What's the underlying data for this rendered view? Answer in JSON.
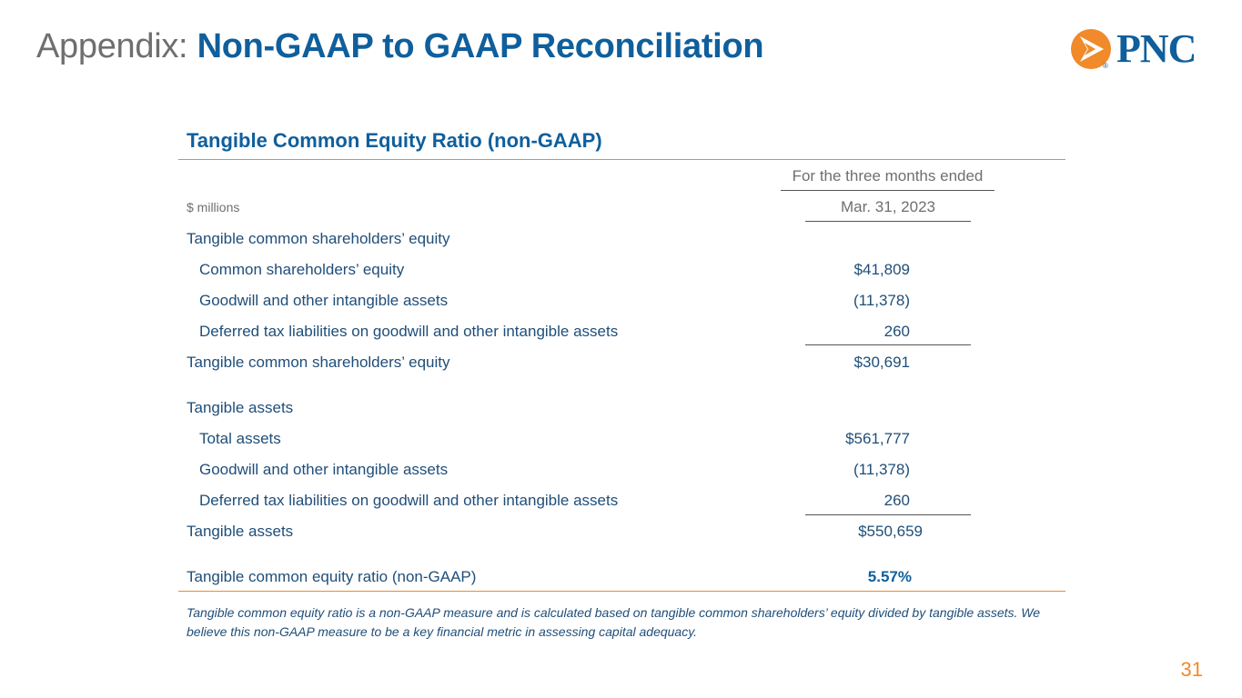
{
  "header": {
    "title_prefix": "Appendix:",
    "title_main": "Non-GAAP to GAAP Reconciliation"
  },
  "logo": {
    "text": "PNC",
    "mark_text": "®"
  },
  "colors": {
    "brand_blue": "#0f5f9c",
    "accent_orange": "#f08a2a",
    "gray_text": "#6f6f6f"
  },
  "table": {
    "title": "Tangible Common Equity Ratio (non-GAAP)",
    "period_header": "For the three months ended",
    "units_label": "$ millions",
    "column_date": "Mar. 31, 2023",
    "rows": [
      {
        "label": "Tangible common shareholders’ equity",
        "value": ""
      },
      {
        "label": "Common shareholders’ equity",
        "value": "$41,809"
      },
      {
        "label": "Goodwill and other intangible assets",
        "value": "(11,378)"
      },
      {
        "label": "Deferred tax liabilities on goodwill and other intangible assets",
        "value": "260"
      },
      {
        "label": "Tangible common shareholders’ equity",
        "value": "$30,691"
      },
      {
        "label": "Tangible assets",
        "value": ""
      },
      {
        "label": "Total assets",
        "value": "$561,777"
      },
      {
        "label": "Goodwill and other intangible assets",
        "value": "(11,378)"
      },
      {
        "label": "Deferred tax liabilities on goodwill and other intangible assets",
        "value": "260"
      },
      {
        "label": "Tangible assets",
        "value": "$550,659"
      },
      {
        "label": "Tangible common equity ratio (non-GAAP)",
        "value": "5.57%"
      }
    ]
  },
  "footnote": "Tangible common equity ratio is a non-GAAP measure and is calculated based on tangible common shareholders’ equity divided by tangible assets. We believe this non-GAAP measure to be a key financial metric in assessing capital adequacy.",
  "page_number": "31"
}
